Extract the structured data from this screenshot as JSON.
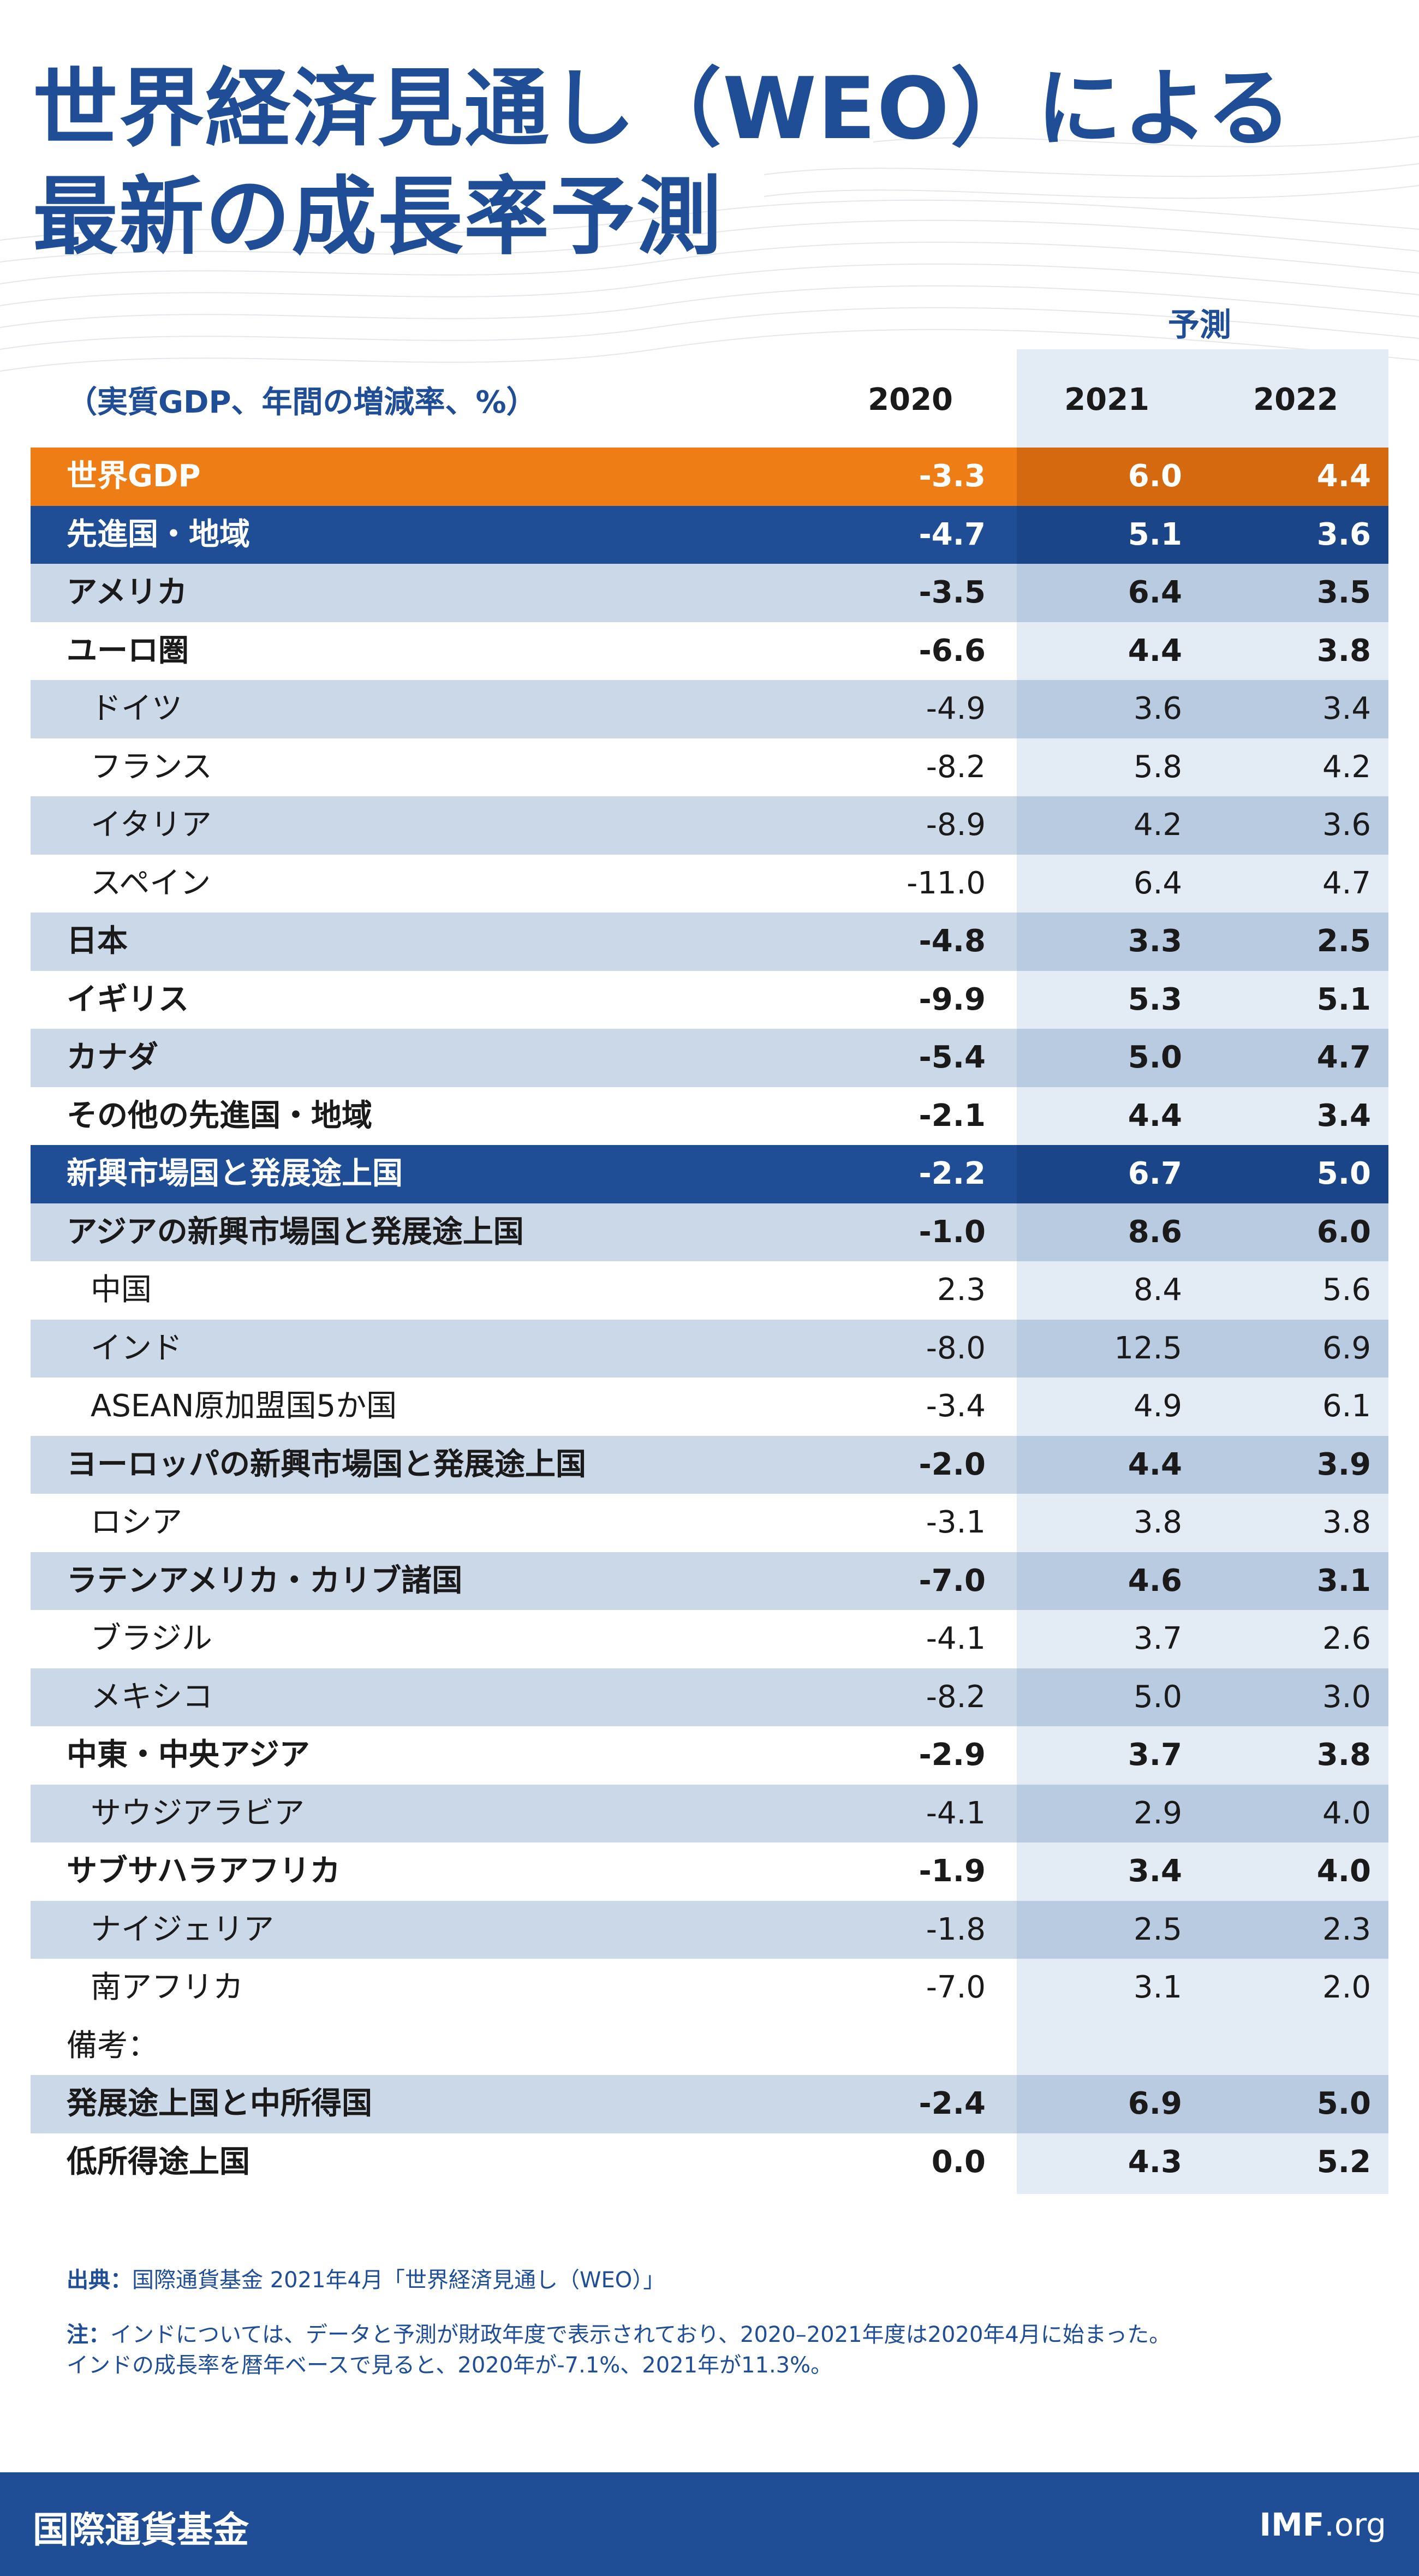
{
  "title_line1": "世界経済見通し（WEO）による",
  "title_line2": "最新の成長率予測",
  "forecast_label": "予測",
  "unit_label": "（実質GDP、年間の増減率、%）",
  "footnote_source_label": "出典：",
  "footnote_source_text": "国際通貨基金 2021年4月「世界経済見通し（WEO）」",
  "footnote_note_label": "注：",
  "footnote_note_line1": "インドについては、データと予測が財政年度で表示されており、2020–2021年度は2020年4月に始まった。",
  "footnote_note_line2": "インドの成長率を暦年ベースで見ると、2020年が-7.1%、2021年が11.3%。",
  "footer_org": "国際通貨基金",
  "footer_site_bold": "IMF",
  "footer_site_rest": ".org",
  "colors": {
    "title_blue": "#1f4e96",
    "world_orange": "#ee7d16",
    "navy_row": "#1f4e96",
    "light_row": "#cbd8e8",
    "forecast_shade": "#e3ebf4"
  },
  "chart_data": {
    "type": "table",
    "columns": [
      "2020",
      "2021",
      "2022"
    ],
    "forecast_columns": [
      "2021",
      "2022"
    ],
    "rows": [
      {
        "label": "世界GDP",
        "values": [
          "-3.3",
          "6.0",
          "4.4"
        ],
        "style": "world"
      },
      {
        "label": "先進国・地域",
        "values": [
          "-4.7",
          "5.1",
          "3.6"
        ],
        "style": "navy"
      },
      {
        "label": "アメリカ",
        "values": [
          "-3.5",
          "6.4",
          "3.5"
        ],
        "style": "light-bold"
      },
      {
        "label": "ユーロ圏",
        "values": [
          "-6.6",
          "4.4",
          "3.8"
        ],
        "style": "white-bold"
      },
      {
        "label": "ドイツ",
        "values": [
          "-4.9",
          "3.6",
          "3.4"
        ],
        "style": "light-sub"
      },
      {
        "label": "フランス",
        "values": [
          "-8.2",
          "5.8",
          "4.2"
        ],
        "style": "white-sub"
      },
      {
        "label": "イタリア",
        "values": [
          "-8.9",
          "4.2",
          "3.6"
        ],
        "style": "light-sub"
      },
      {
        "label": "スペイン",
        "values": [
          "-11.0",
          "6.4",
          "4.7"
        ],
        "style": "white-sub"
      },
      {
        "label": "日本",
        "values": [
          "-4.8",
          "3.3",
          "2.5"
        ],
        "style": "light-bold"
      },
      {
        "label": "イギリス",
        "values": [
          "-9.9",
          "5.3",
          "5.1"
        ],
        "style": "white-bold"
      },
      {
        "label": "カナダ",
        "values": [
          "-5.4",
          "5.0",
          "4.7"
        ],
        "style": "light-bold"
      },
      {
        "label": "その他の先進国・地域",
        "values": [
          "-2.1",
          "4.4",
          "3.4"
        ],
        "style": "white-bold"
      },
      {
        "label": "新興市場国と発展途上国",
        "values": [
          "-2.2",
          "6.7",
          "5.0"
        ],
        "style": "navy"
      },
      {
        "label": "アジアの新興市場国と発展途上国",
        "values": [
          "-1.0",
          "8.6",
          "6.0"
        ],
        "style": "light-bold"
      },
      {
        "label": "中国",
        "values": [
          "2.3",
          "8.4",
          "5.6"
        ],
        "style": "white-sub"
      },
      {
        "label": "インド",
        "values": [
          "-8.0",
          "12.5",
          "6.9"
        ],
        "style": "light-sub"
      },
      {
        "label": "ASEAN原加盟国5か国",
        "values": [
          "-3.4",
          "4.9",
          "6.1"
        ],
        "style": "white-sub"
      },
      {
        "label": "ヨーロッパの新興市場国と発展途上国",
        "values": [
          "-2.0",
          "4.4",
          "3.9"
        ],
        "style": "light-bold"
      },
      {
        "label": "ロシア",
        "values": [
          "-3.1",
          "3.8",
          "3.8"
        ],
        "style": "white-sub"
      },
      {
        "label": "ラテンアメリカ・カリブ諸国",
        "values": [
          "-7.0",
          "4.6",
          "3.1"
        ],
        "style": "light-bold"
      },
      {
        "label": "ブラジル",
        "values": [
          "-4.1",
          "3.7",
          "2.6"
        ],
        "style": "white-sub"
      },
      {
        "label": "メキシコ",
        "values": [
          "-8.2",
          "5.0",
          "3.0"
        ],
        "style": "light-sub"
      },
      {
        "label": "中東・中央アジア",
        "values": [
          "-2.9",
          "3.7",
          "3.8"
        ],
        "style": "white-bold"
      },
      {
        "label": "サウジアラビア",
        "values": [
          "-4.1",
          "2.9",
          "4.0"
        ],
        "style": "light-sub"
      },
      {
        "label": "サブサハラアフリカ",
        "values": [
          "-1.9",
          "3.4",
          "4.0"
        ],
        "style": "white-bold"
      },
      {
        "label": "ナイジェリア",
        "values": [
          "-1.8",
          "2.5",
          "2.3"
        ],
        "style": "light-sub"
      },
      {
        "label": "南アフリカ",
        "values": [
          "-7.0",
          "3.1",
          "2.0"
        ],
        "style": "white-sub"
      },
      {
        "label": "備考：",
        "values": [
          "",
          "",
          ""
        ],
        "style": "white-note"
      },
      {
        "label": "発展途上国と中所得国",
        "values": [
          "-2.4",
          "6.9",
          "5.0"
        ],
        "style": "light-bold"
      },
      {
        "label": "低所得途上国",
        "values": [
          "0.0",
          "4.3",
          "5.2"
        ],
        "style": "white-bold"
      }
    ]
  }
}
